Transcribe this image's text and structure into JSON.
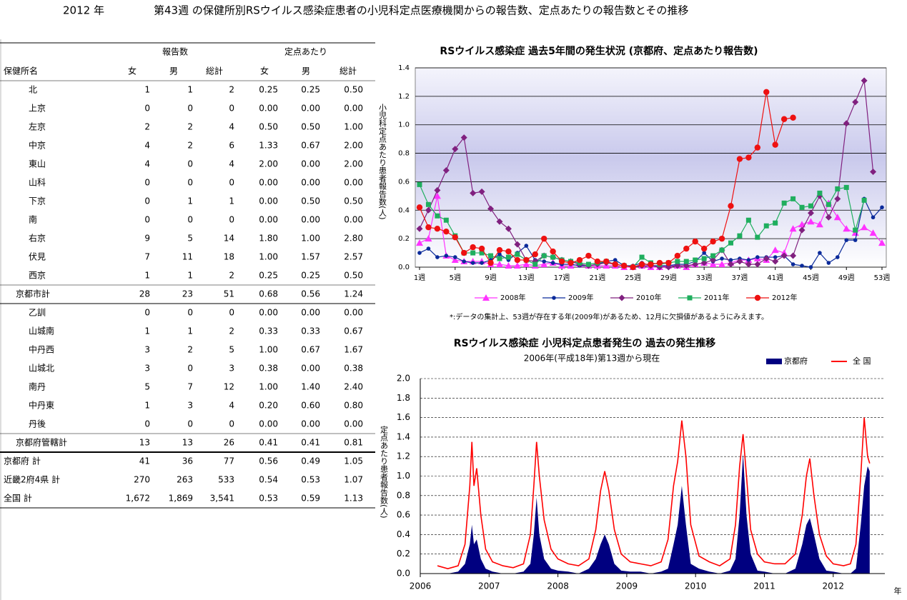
{
  "header": {
    "year": "2012 年",
    "title": "第43週 の保健所別RSウイルス感染症患者の小児科定点医療機関からの報告数、定点あたりの報告数とその推移"
  },
  "table": {
    "group_headers": [
      "報告数",
      "定点あたり"
    ],
    "columns": [
      "保健所名",
      "女",
      "男",
      "総計",
      "女",
      "男",
      "総計"
    ],
    "rows": [
      [
        "北",
        "1",
        "1",
        "2",
        "0.25",
        "0.25",
        "0.50"
      ],
      [
        "上京",
        "0",
        "0",
        "0",
        "0.00",
        "0.00",
        "0.00"
      ],
      [
        "左京",
        "2",
        "2",
        "4",
        "0.50",
        "0.50",
        "1.00"
      ],
      [
        "中京",
        "4",
        "2",
        "6",
        "1.33",
        "0.67",
        "2.00"
      ],
      [
        "東山",
        "4",
        "0",
        "4",
        "2.00",
        "0.00",
        "2.00"
      ],
      [
        "山科",
        "0",
        "0",
        "0",
        "0.00",
        "0.00",
        "0.00"
      ],
      [
        "下京",
        "0",
        "1",
        "1",
        "0.00",
        "0.50",
        "0.50"
      ],
      [
        "南",
        "0",
        "0",
        "0",
        "0.00",
        "0.00",
        "0.00"
      ],
      [
        "右京",
        "9",
        "5",
        "14",
        "1.80",
        "1.00",
        "2.80"
      ],
      [
        "伏見",
        "7",
        "11",
        "18",
        "1.00",
        "1.57",
        "2.57"
      ],
      [
        "西京",
        "1",
        "1",
        "2",
        "0.25",
        "0.25",
        "0.50"
      ],
      [
        "京都市計",
        "28",
        "23",
        "51",
        "0.68",
        "0.56",
        "1.24"
      ],
      [
        "乙訓",
        "0",
        "0",
        "0",
        "0.00",
        "0.00",
        "0.00"
      ],
      [
        "山城南",
        "1",
        "1",
        "2",
        "0.33",
        "0.33",
        "0.67"
      ],
      [
        "中丹西",
        "3",
        "2",
        "5",
        "1.00",
        "0.67",
        "1.67"
      ],
      [
        "山城北",
        "3",
        "0",
        "3",
        "0.38",
        "0.00",
        "0.38"
      ],
      [
        "南丹",
        "5",
        "7",
        "12",
        "1.00",
        "1.40",
        "2.40"
      ],
      [
        "中丹東",
        "1",
        "3",
        "4",
        "0.20",
        "0.60",
        "0.80"
      ],
      [
        "丹後",
        "0",
        "0",
        "0",
        "0.00",
        "0.00",
        "0.00"
      ],
      [
        "京都府管轄計",
        "13",
        "13",
        "26",
        "0.41",
        "0.41",
        "0.81"
      ],
      [
        "京都府  計",
        "41",
        "36",
        "77",
        "0.56",
        "0.49",
        "1.05"
      ],
      [
        "近畿2府4県  計",
        "270",
        "263",
        "533",
        "0.54",
        "0.53",
        "1.07"
      ],
      [
        "全国  計",
        "1,672",
        "1,869",
        "3,541",
        "0.53",
        "0.59",
        "1.13"
      ]
    ]
  },
  "chart_data": [
    {
      "type": "line",
      "title": "RSウイルス感染症  過去5年間の発生状況 (京都府、定点あたり報告数)",
      "y_label": "小児科定点あたり患者報告数(人)",
      "note": "*:データの集計上、53週が存在する年(2009年)があるため、12月に欠損値があるようにみえます。",
      "categories": [
        "1週",
        null,
        null,
        null,
        "5週",
        null,
        null,
        null,
        "9週",
        null,
        null,
        null,
        "13週",
        null,
        null,
        null,
        "17週",
        null,
        null,
        null,
        "21週",
        null,
        null,
        null,
        "25週",
        null,
        null,
        null,
        "29週",
        null,
        null,
        null,
        "33週",
        null,
        null,
        null,
        "37週",
        null,
        null,
        null,
        "41週",
        null,
        null,
        null,
        "45週",
        null,
        null,
        null,
        "49週",
        null,
        null,
        null,
        "53週"
      ],
      "ylim": [
        0,
        1.4
      ],
      "yticks": [
        {
          "value": 0,
          "label": "0.0"
        },
        0.2,
        0.4,
        0.6,
        0.8,
        {
          "value": 1,
          "label": "1.0"
        },
        1.2,
        1.4
      ],
      "grid": true,
      "legend": "bottom",
      "series": [
        {
          "name": "2008年",
          "color": "#ff33ff",
          "marker": "triangle",
          "values": [
            0.17,
            0.2,
            0.5,
            0.08,
            0.05,
            0.04,
            0.04,
            0.04,
            0.02,
            0.02,
            0.01,
            0.01,
            0.02,
            0.01,
            0.02,
            0.03,
            0.01,
            0.01,
            0.02,
            0.01,
            0.01,
            0.01,
            0.01,
            0,
            0,
            0.01,
            0,
            0,
            0.01,
            0.01,
            0,
            0.02,
            0.03,
            0.02,
            0.02,
            0.03,
            0.05,
            0.05,
            0.06,
            0.05,
            0.12,
            0.1,
            0.27,
            0.3,
            0.32,
            0.3,
            0.45,
            0.35,
            0.27,
            0.24,
            0.28,
            0.24,
            0.17
          ]
        },
        {
          "name": "2009年",
          "color": "#0a2a9a",
          "marker": "circle",
          "values": [
            0.1,
            0.13,
            0.07,
            0.08,
            0.07,
            0.04,
            0.03,
            0.03,
            0.05,
            0.09,
            0.05,
            0.1,
            0.15,
            0.05,
            0.04,
            0.03,
            0.02,
            0.02,
            0.01,
            0.01,
            0.02,
            0.04,
            0.05,
            0.01,
            0.01,
            0.03,
            0.01,
            0.01,
            0.01,
            0.02,
            0.02,
            0.04,
            0.1,
            0.04,
            0.06,
            0.05,
            0.06,
            0.05,
            0.07,
            0.07,
            0.07,
            0.08,
            0.02,
            0.01,
            0,
            0.1,
            0.03,
            0.07,
            0.19,
            0.19,
            0.48,
            0.35,
            0.42
          ]
        },
        {
          "name": "2010年",
          "color": "#80207f",
          "marker": "diamond",
          "values": [
            0.27,
            0.4,
            0.54,
            0.68,
            0.83,
            0.91,
            0.52,
            0.53,
            0.41,
            0.32,
            0.27,
            0.16,
            0.05,
            0.04,
            0.08,
            0.07,
            0.05,
            0.04,
            0.02,
            0.01,
            0.02,
            0.03,
            0.02,
            0.01,
            0,
            0.01,
            0.01,
            0,
            0,
            0.01,
            0.01,
            0.02,
            0.03,
            0.05,
            0.12,
            0.02,
            0.04,
            0.02,
            0.02,
            0.06,
            0.04,
            0.08,
            0.08,
            0.26,
            0.38,
            0.5,
            0.35,
            0.48,
            1.01,
            1.16,
            1.31,
            0.67,
            null
          ]
        },
        {
          "name": "2011年",
          "color": "#1fae5e",
          "marker": "square",
          "values": [
            0.58,
            0.44,
            0.36,
            0.33,
            0.22,
            0.1,
            0.1,
            0.1,
            0.08,
            0.06,
            0.07,
            0.09,
            0.05,
            0.02,
            0.08,
            0.07,
            0.05,
            0.04,
            0.03,
            0.02,
            0.03,
            0.04,
            0.02,
            0.01,
            0,
            0.07,
            0.03,
            0.02,
            0.03,
            0.04,
            0.04,
            0.05,
            0.06,
            0.08,
            0.12,
            0.17,
            0.22,
            0.33,
            0.21,
            0.29,
            0.31,
            0.45,
            0.48,
            0.42,
            0.43,
            0.52,
            0.44,
            0.55,
            0.56,
            0.26,
            0.47,
            null,
            null
          ]
        },
        {
          "name": "2012年",
          "color": "#ee1111",
          "marker": "big-circle",
          "values": [
            0.42,
            0.28,
            0.27,
            0.25,
            0.21,
            0.1,
            0.14,
            0.13,
            0.03,
            0.12,
            0.11,
            0.05,
            0.05,
            0.09,
            0.2,
            0.11,
            0.04,
            0.03,
            0.05,
            0.08,
            0.04,
            0.04,
            0.02,
            0.01,
            0,
            0.02,
            0.02,
            0.03,
            0.03,
            0.08,
            0.13,
            0.18,
            0.13,
            0.18,
            0.2,
            0.43,
            0.76,
            0.77,
            0.84,
            1.23,
            0.86,
            1.04,
            1.05,
            null,
            null,
            null,
            null,
            null,
            null,
            null,
            null,
            null,
            null
          ]
        }
      ]
    },
    {
      "type": "area-line",
      "title": "RSウイルス感染症  小児科定点患者発生の 過去の発生推移",
      "subtitle": "2006年(平成18年)第13週から現在",
      "y_label": "定点あたり患者報告数(人)",
      "x_label": "年",
      "x": [
        2006.25,
        2006.4,
        2006.55,
        2006.65,
        2006.72,
        2006.75,
        2006.78,
        2006.82,
        2006.88,
        2006.95,
        2007.05,
        2007.2,
        2007.35,
        2007.5,
        2007.6,
        2007.65,
        2007.69,
        2007.73,
        2007.8,
        2007.9,
        2008.0,
        2008.15,
        2008.3,
        2008.45,
        2008.55,
        2008.62,
        2008.68,
        2008.74,
        2008.82,
        2008.92,
        2009.05,
        2009.2,
        2009.35,
        2009.5,
        2009.6,
        2009.68,
        2009.74,
        2009.8,
        2009.86,
        2009.93,
        2010.05,
        2010.2,
        2010.35,
        2010.5,
        2010.58,
        2010.64,
        2010.69,
        2010.74,
        2010.8,
        2010.9,
        2011.0,
        2011.15,
        2011.3,
        2011.45,
        2011.55,
        2011.61,
        2011.66,
        2011.72,
        2011.8,
        2011.9,
        2012.0,
        2012.15,
        2012.25,
        2012.33,
        2012.4,
        2012.45,
        2012.5,
        2012.53
      ],
      "xlim": [
        2006,
        2012.75
      ],
      "xticks": [
        2006,
        2007,
        2008,
        2009,
        2010,
        2011,
        2012
      ],
      "ylim": [
        0,
        2
      ],
      "yticks": [
        {
          "value": 0,
          "label": "0.0"
        },
        0.2,
        0.4,
        0.6,
        0.8,
        {
          "value": 1,
          "label": "1.0"
        },
        1.2,
        1.4,
        1.6,
        1.8,
        {
          "value": 2,
          "label": "2.0"
        }
      ],
      "grid": true,
      "legend": "top-right",
      "series": [
        {
          "name": "京都府",
          "color": "#000080",
          "style": "area",
          "values": [
            0,
            0,
            0.02,
            0.1,
            0.3,
            0.5,
            0.3,
            0.35,
            0.15,
            0.05,
            0.02,
            0,
            0,
            0.02,
            0.1,
            0.4,
            0.78,
            0.4,
            0.15,
            0.05,
            0.03,
            0.02,
            0,
            0.05,
            0.15,
            0.3,
            0.4,
            0.3,
            0.1,
            0.03,
            0.02,
            0.02,
            0,
            0.02,
            0.05,
            0.3,
            0.5,
            0.9,
            0.5,
            0.1,
            0.05,
            0.02,
            0,
            0.03,
            0.15,
            0.6,
            1.23,
            0.6,
            0.2,
            0.03,
            0.02,
            0,
            0,
            0.05,
            0.3,
            0.5,
            0.57,
            0.4,
            0.15,
            0.03,
            0.02,
            0,
            0,
            0.05,
            0.5,
            0.9,
            1.1,
            1.05
          ]
        },
        {
          "name": "全 国",
          "color": "#ff0000",
          "style": "line",
          "values": [
            0.08,
            0.05,
            0.08,
            0.3,
            0.9,
            1.35,
            0.9,
            1.08,
            0.6,
            0.25,
            0.12,
            0.08,
            0.06,
            0.1,
            0.4,
            0.9,
            1.35,
            1.0,
            0.55,
            0.25,
            0.15,
            0.1,
            0.08,
            0.15,
            0.45,
            0.85,
            1.05,
            0.85,
            0.45,
            0.2,
            0.12,
            0.1,
            0.08,
            0.12,
            0.35,
            0.9,
            1.15,
            1.57,
            1.2,
            0.5,
            0.18,
            0.12,
            0.08,
            0.15,
            0.5,
            1.1,
            1.43,
            1.0,
            0.45,
            0.2,
            0.12,
            0.1,
            0.1,
            0.2,
            0.6,
            1.0,
            1.18,
            0.8,
            0.4,
            0.18,
            0.1,
            0.08,
            0.1,
            0.3,
            1.0,
            1.6,
            1.2,
            1.13
          ]
        }
      ]
    }
  ]
}
